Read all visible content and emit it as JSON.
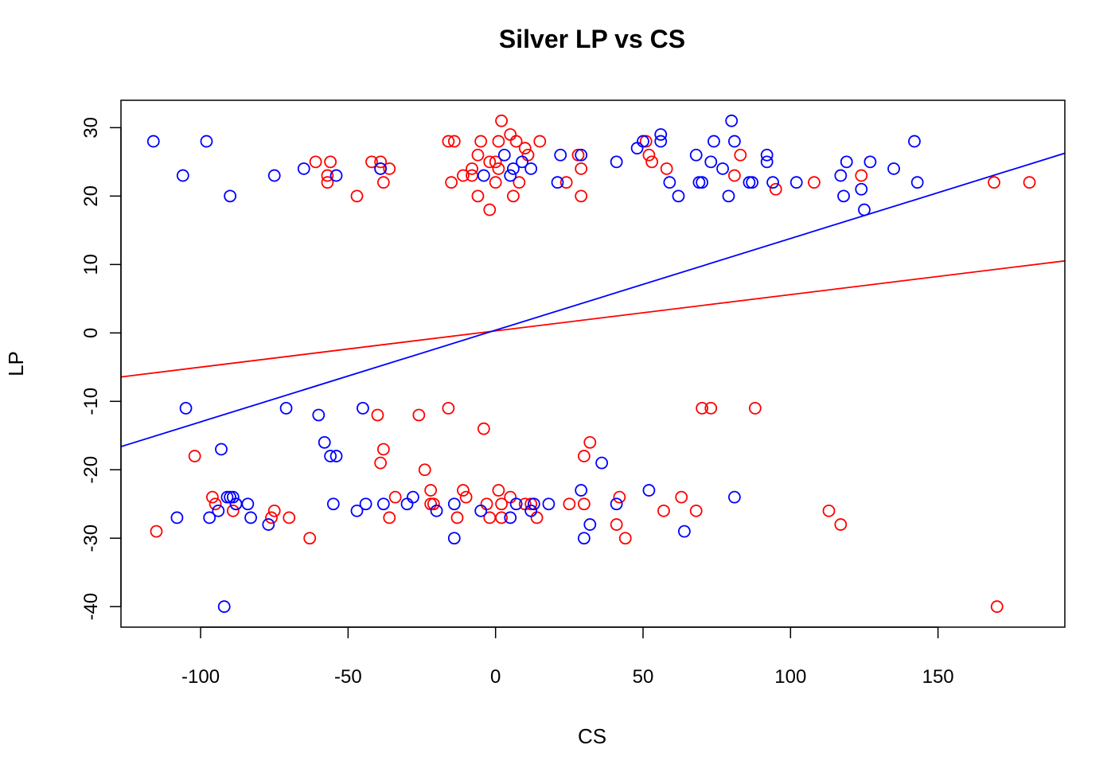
{
  "chart_data": {
    "type": "scatter",
    "title": "Silver LP vs CS",
    "xlabel": "CS",
    "ylabel": "LP",
    "xlim": [
      -127,
      193
    ],
    "ylim": [
      -43,
      34
    ],
    "xticks": [
      -100,
      -50,
      0,
      50,
      100,
      150
    ],
    "yticks": [
      -40,
      -30,
      -20,
      -10,
      0,
      10,
      20,
      30
    ],
    "xtick_labels": [
      "-100",
      "-50",
      "0",
      "50",
      "100",
      "150"
    ],
    "ytick_labels": [
      "-40",
      "-30",
      "-20",
      "-10",
      "0",
      "10",
      "20",
      "30"
    ],
    "grid": false,
    "legend": "none",
    "series": [
      {
        "color": "#ff0000",
        "marker": "open-circle",
        "points": [
          [
            -115,
            -29
          ],
          [
            -102,
            -18
          ],
          [
            -96,
            -24
          ],
          [
            -95,
            -25
          ],
          [
            -89,
            -26
          ],
          [
            -88,
            -25
          ],
          [
            -75,
            -26
          ],
          [
            -76,
            -27
          ],
          [
            -70,
            -27
          ],
          [
            -63,
            -30
          ],
          [
            -61,
            25
          ],
          [
            -57,
            23
          ],
          [
            -57,
            22
          ],
          [
            -56,
            25
          ],
          [
            -47,
            20
          ],
          [
            -42,
            25
          ],
          [
            -39,
            25
          ],
          [
            -39,
            24
          ],
          [
            -38,
            22
          ],
          [
            -36,
            24
          ],
          [
            -40,
            -12
          ],
          [
            -39,
            -19
          ],
          [
            -38,
            -17
          ],
          [
            -36,
            -27
          ],
          [
            -34,
            -24
          ],
          [
            -26,
            -12
          ],
          [
            -24,
            -20
          ],
          [
            -22,
            -23
          ],
          [
            -22,
            -25
          ],
          [
            -21,
            -25
          ],
          [
            -16,
            -11
          ],
          [
            -13,
            -27
          ],
          [
            -11,
            -23
          ],
          [
            -10,
            -24
          ],
          [
            -4,
            -14
          ],
          [
            -3,
            -25
          ],
          [
            -2,
            -27
          ],
          [
            1,
            -23
          ],
          [
            2,
            -25
          ],
          [
            2,
            -27
          ],
          [
            5,
            -24
          ],
          [
            10,
            -25
          ],
          [
            12,
            -25
          ],
          [
            14,
            -27
          ],
          [
            25,
            -25
          ],
          [
            30,
            -18
          ],
          [
            30,
            -25
          ],
          [
            32,
            -16
          ],
          [
            41,
            -28
          ],
          [
            42,
            -24
          ],
          [
            44,
            -30
          ],
          [
            57,
            -26
          ],
          [
            63,
            -24
          ],
          [
            68,
            -26
          ],
          [
            113,
            -26
          ],
          [
            117,
            -28
          ],
          [
            170,
            -40
          ],
          [
            -16,
            28
          ],
          [
            -15,
            22
          ],
          [
            -14,
            28
          ],
          [
            -11,
            23
          ],
          [
            -8,
            24
          ],
          [
            -8,
            23
          ],
          [
            -6,
            26
          ],
          [
            -6,
            20
          ],
          [
            -5,
            28
          ],
          [
            -2,
            25
          ],
          [
            -2,
            18
          ],
          [
            0,
            25
          ],
          [
            0,
            22
          ],
          [
            1,
            28
          ],
          [
            1,
            24
          ],
          [
            2,
            31
          ],
          [
            5,
            29
          ],
          [
            6,
            20
          ],
          [
            7,
            28
          ],
          [
            8,
            22
          ],
          [
            10,
            27
          ],
          [
            11,
            26
          ],
          [
            15,
            28
          ],
          [
            24,
            22
          ],
          [
            28,
            26
          ],
          [
            29,
            24
          ],
          [
            29,
            20
          ],
          [
            51,
            28
          ],
          [
            52,
            26
          ],
          [
            53,
            25
          ],
          [
            58,
            24
          ],
          [
            81,
            23
          ],
          [
            83,
            26
          ],
          [
            95,
            21
          ],
          [
            108,
            22
          ],
          [
            124,
            23
          ],
          [
            169,
            22
          ],
          [
            181,
            22
          ],
          [
            70,
            -11
          ],
          [
            73,
            -11
          ],
          [
            88,
            -11
          ]
        ]
      },
      {
        "color": "#0000ff",
        "marker": "open-circle",
        "points": [
          [
            -116,
            28
          ],
          [
            -106,
            23
          ],
          [
            -98,
            28
          ],
          [
            -90,
            20
          ],
          [
            -75,
            23
          ],
          [
            -65,
            24
          ],
          [
            -54,
            23
          ],
          [
            -39,
            24
          ],
          [
            -4,
            23
          ],
          [
            3,
            26
          ],
          [
            5,
            23
          ],
          [
            6,
            24
          ],
          [
            9,
            25
          ],
          [
            12,
            24
          ],
          [
            21,
            22
          ],
          [
            22,
            26
          ],
          [
            29,
            26
          ],
          [
            41,
            25
          ],
          [
            48,
            27
          ],
          [
            50,
            28
          ],
          [
            56,
            29
          ],
          [
            56,
            28
          ],
          [
            59,
            22
          ],
          [
            62,
            20
          ],
          [
            68,
            26
          ],
          [
            69,
            22
          ],
          [
            70,
            22
          ],
          [
            73,
            25
          ],
          [
            74,
            28
          ],
          [
            77,
            24
          ],
          [
            79,
            20
          ],
          [
            80,
            31
          ],
          [
            81,
            28
          ],
          [
            86,
            22
          ],
          [
            87,
            22
          ],
          [
            92,
            26
          ],
          [
            92,
            25
          ],
          [
            94,
            22
          ],
          [
            102,
            22
          ],
          [
            117,
            23
          ],
          [
            118,
            20
          ],
          [
            119,
            25
          ],
          [
            124,
            21
          ],
          [
            125,
            18
          ],
          [
            127,
            25
          ],
          [
            135,
            24
          ],
          [
            142,
            28
          ],
          [
            143,
            22
          ],
          [
            -105,
            -11
          ],
          [
            -71,
            -11
          ],
          [
            -60,
            -12
          ],
          [
            -58,
            -16
          ],
          [
            -56,
            -18
          ],
          [
            -54,
            -18
          ],
          [
            -45,
            -11
          ],
          [
            -93,
            -17
          ],
          [
            -108,
            -27
          ],
          [
            -97,
            -27
          ],
          [
            -94,
            -26
          ],
          [
            -91,
            -24
          ],
          [
            -90,
            -24
          ],
          [
            -89,
            -24
          ],
          [
            -88,
            -25
          ],
          [
            -84,
            -25
          ],
          [
            -83,
            -27
          ],
          [
            -77,
            -28
          ],
          [
            -55,
            -25
          ],
          [
            -47,
            -26
          ],
          [
            -44,
            -25
          ],
          [
            -38,
            -25
          ],
          [
            -30,
            -25
          ],
          [
            -28,
            -24
          ],
          [
            -20,
            -26
          ],
          [
            -14,
            -25
          ],
          [
            -14,
            -30
          ],
          [
            -5,
            -26
          ],
          [
            5,
            -27
          ],
          [
            7,
            -25
          ],
          [
            12,
            -26
          ],
          [
            13,
            -25
          ],
          [
            18,
            -25
          ],
          [
            29,
            -23
          ],
          [
            30,
            -30
          ],
          [
            32,
            -28
          ],
          [
            36,
            -19
          ],
          [
            41,
            -25
          ],
          [
            52,
            -23
          ],
          [
            64,
            -29
          ],
          [
            81,
            -24
          ],
          [
            -92,
            -40
          ]
        ]
      }
    ],
    "fit_lines": [
      {
        "color": "#ff0000",
        "intercept": 0.3,
        "slope": 0.053
      },
      {
        "color": "#0000ff",
        "intercept": 0.4,
        "slope": 0.134
      }
    ]
  }
}
